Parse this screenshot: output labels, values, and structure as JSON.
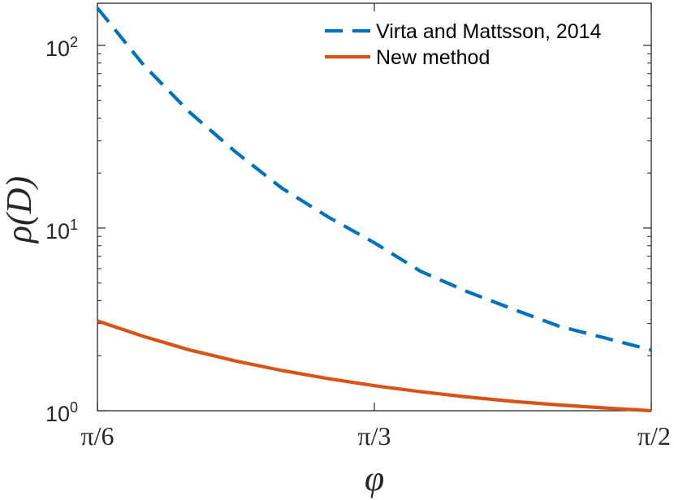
{
  "chart_data": {
    "type": "line",
    "title": "",
    "xlabel": "φ",
    "ylabel": "ρ(D)",
    "yscale": "log",
    "xlim": [
      0.5236,
      1.5708
    ],
    "ylim": [
      1,
      170
    ],
    "x_ticks": [
      {
        "value": 0.5236,
        "label": "π/6"
      },
      {
        "value": 1.0472,
        "label": "π/3"
      },
      {
        "value": 1.5708,
        "label": "π/2"
      }
    ],
    "y_ticks": [
      {
        "value": 1,
        "base": "10",
        "exp": "0"
      },
      {
        "value": 10,
        "base": "10",
        "exp": "1"
      },
      {
        "value": 100,
        "base": "10",
        "exp": "2"
      }
    ],
    "legend_position": "top-right",
    "series": [
      {
        "name": "Virta and Mattsson, 2014",
        "color": "#0072BD",
        "style": "dashed",
        "x": [
          0.5236,
          0.6109,
          0.6981,
          0.7854,
          0.8727,
          0.9599,
          1.0472,
          1.1345,
          1.2217,
          1.309,
          1.3963,
          1.4835,
          1.5708
        ],
        "y": [
          160,
          78,
          43,
          26,
          16.5,
          11.5,
          8.3,
          5.8,
          4.5,
          3.6,
          2.9,
          2.5,
          2.15
        ]
      },
      {
        "name": "New method",
        "color": "#D95319",
        "style": "solid",
        "x": [
          0.5236,
          0.6109,
          0.6981,
          0.7854,
          0.8727,
          0.9599,
          1.0472,
          1.1345,
          1.2217,
          1.309,
          1.3963,
          1.4835,
          1.5708
        ],
        "y": [
          3.1,
          2.55,
          2.15,
          1.87,
          1.66,
          1.5,
          1.37,
          1.27,
          1.19,
          1.125,
          1.075,
          1.035,
          1.0
        ]
      }
    ]
  }
}
